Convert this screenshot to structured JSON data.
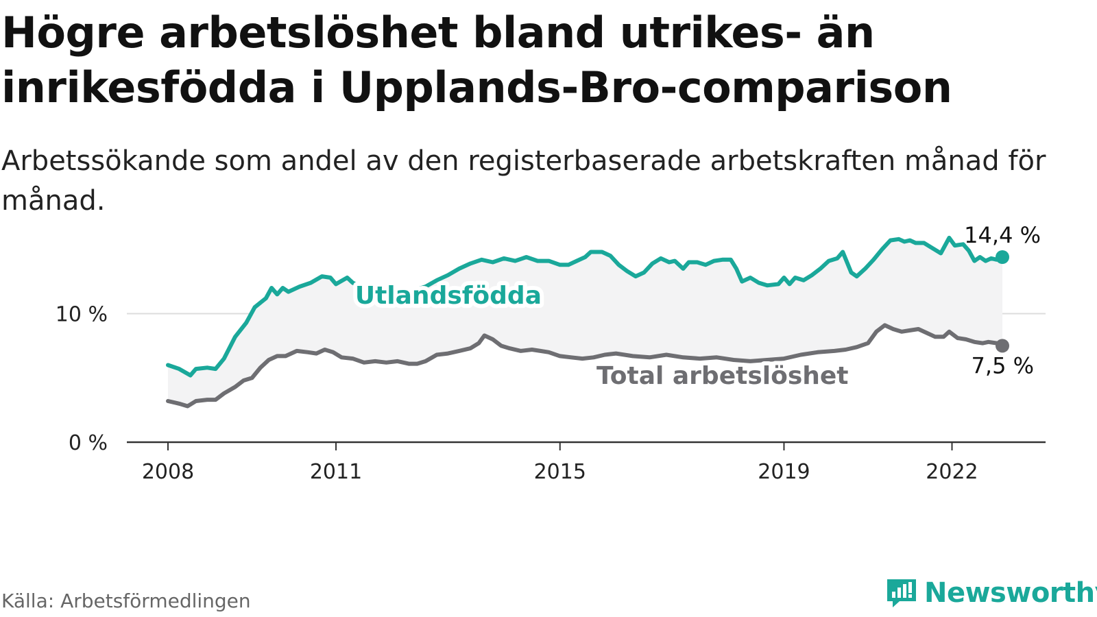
{
  "title": "Högre arbetslöshet bland utrikes- än inrikesfödda i Upplands-Bro-comparison",
  "subtitle": "Arbetssökande som andel av den registerbaserade arbetskraften månad för månad.",
  "source": "Källa: Arbetsförmedlingen",
  "brand": {
    "name": "Newsworthy",
    "icon": "newsworthy-logo-icon"
  },
  "colors": {
    "foreign": "#1aa89a",
    "total": "#6e6e72",
    "band": "#f3f3f4",
    "grid": "#dddddd",
    "axis": "#333333"
  },
  "chart_data": {
    "type": "line",
    "title": "Högre arbetslöshet bland utrikes- än inrikesfödda i Upplands-Bro-comparison",
    "xlabel": "",
    "ylabel": "",
    "xlim": [
      2008.0,
      2022.9
    ],
    "ylim": [
      0,
      16
    ],
    "y_ticks": [
      {
        "value": 0,
        "label": "0 %"
      },
      {
        "value": 10,
        "label": "10 %"
      }
    ],
    "x_ticks": [
      {
        "value": 2008,
        "label": "2008"
      },
      {
        "value": 2011,
        "label": "2011"
      },
      {
        "value": 2015,
        "label": "2015"
      },
      {
        "value": 2019,
        "label": "2019"
      },
      {
        "value": 2022,
        "label": "2022"
      }
    ],
    "series": [
      {
        "name": "Utlandsfödda",
        "label": "Utlandsfödda",
        "end_label": "14,4 %",
        "points": [
          [
            2008.0,
            6.0
          ],
          [
            2008.2,
            5.7
          ],
          [
            2008.4,
            5.2
          ],
          [
            2008.5,
            5.7
          ],
          [
            2008.7,
            5.8
          ],
          [
            2008.85,
            5.7
          ],
          [
            2009.0,
            6.5
          ],
          [
            2009.2,
            8.2
          ],
          [
            2009.4,
            9.3
          ],
          [
            2009.55,
            10.5
          ],
          [
            2009.75,
            11.2
          ],
          [
            2009.85,
            12.0
          ],
          [
            2009.95,
            11.5
          ],
          [
            2010.05,
            12.0
          ],
          [
            2010.15,
            11.7
          ],
          [
            2010.35,
            12.1
          ],
          [
            2010.55,
            12.4
          ],
          [
            2010.75,
            12.9
          ],
          [
            2010.9,
            12.8
          ],
          [
            2011.0,
            12.3
          ],
          [
            2011.2,
            12.8
          ],
          [
            2011.3,
            12.4
          ],
          [
            2011.45,
            12.1
          ],
          [
            2011.65,
            11.8
          ],
          [
            2011.8,
            12.2
          ],
          [
            2012.0,
            11.9
          ],
          [
            2012.15,
            11.6
          ],
          [
            2012.3,
            11.5
          ],
          [
            2012.45,
            11.9
          ],
          [
            2012.6,
            12.1
          ],
          [
            2012.8,
            12.6
          ],
          [
            2013.0,
            13.0
          ],
          [
            2013.2,
            13.5
          ],
          [
            2013.4,
            13.9
          ],
          [
            2013.6,
            14.2
          ],
          [
            2013.8,
            14.0
          ],
          [
            2014.0,
            14.3
          ],
          [
            2014.2,
            14.1
          ],
          [
            2014.4,
            14.4
          ],
          [
            2014.6,
            14.1
          ],
          [
            2014.8,
            14.1
          ],
          [
            2015.0,
            13.8
          ],
          [
            2015.15,
            13.8
          ],
          [
            2015.3,
            14.1
          ],
          [
            2015.45,
            14.4
          ],
          [
            2015.55,
            14.8
          ],
          [
            2015.75,
            14.8
          ],
          [
            2015.9,
            14.5
          ],
          [
            2016.05,
            13.8
          ],
          [
            2016.2,
            13.3
          ],
          [
            2016.35,
            12.9
          ],
          [
            2016.5,
            13.2
          ],
          [
            2016.65,
            13.9
          ],
          [
            2016.8,
            14.3
          ],
          [
            2016.95,
            14.0
          ],
          [
            2017.05,
            14.1
          ],
          [
            2017.2,
            13.5
          ],
          [
            2017.3,
            14.0
          ],
          [
            2017.45,
            14.0
          ],
          [
            2017.6,
            13.8
          ],
          [
            2017.75,
            14.1
          ],
          [
            2017.9,
            14.2
          ],
          [
            2018.05,
            14.2
          ],
          [
            2018.15,
            13.5
          ],
          [
            2018.25,
            12.5
          ],
          [
            2018.4,
            12.8
          ],
          [
            2018.55,
            12.4
          ],
          [
            2018.7,
            12.2
          ],
          [
            2018.9,
            12.3
          ],
          [
            2019.0,
            12.8
          ],
          [
            2019.1,
            12.3
          ],
          [
            2019.2,
            12.8
          ],
          [
            2019.35,
            12.6
          ],
          [
            2019.5,
            13.0
          ],
          [
            2019.65,
            13.5
          ],
          [
            2019.8,
            14.1
          ],
          [
            2019.95,
            14.3
          ],
          [
            2020.05,
            14.8
          ],
          [
            2020.2,
            13.2
          ],
          [
            2020.3,
            12.9
          ],
          [
            2020.45,
            13.5
          ],
          [
            2020.6,
            14.2
          ],
          [
            2020.75,
            15.0
          ],
          [
            2020.9,
            15.7
          ],
          [
            2021.05,
            15.8
          ],
          [
            2021.15,
            15.6
          ],
          [
            2021.25,
            15.7
          ],
          [
            2021.35,
            15.5
          ],
          [
            2021.5,
            15.5
          ],
          [
            2021.65,
            15.1
          ],
          [
            2021.8,
            14.7
          ],
          [
            2021.95,
            15.9
          ],
          [
            2022.05,
            15.3
          ],
          [
            2022.2,
            15.4
          ],
          [
            2022.3,
            14.9
          ],
          [
            2022.4,
            14.1
          ],
          [
            2022.5,
            14.4
          ],
          [
            2022.6,
            14.1
          ],
          [
            2022.7,
            14.3
          ],
          [
            2022.8,
            14.2
          ],
          [
            2022.9,
            14.4
          ]
        ]
      },
      {
        "name": "Total arbetslöshet",
        "label": "Total arbetslöshet",
        "end_label": "7,5 %",
        "points": [
          [
            2008.0,
            3.2
          ],
          [
            2008.2,
            3.0
          ],
          [
            2008.35,
            2.8
          ],
          [
            2008.5,
            3.2
          ],
          [
            2008.7,
            3.3
          ],
          [
            2008.85,
            3.3
          ],
          [
            2009.0,
            3.8
          ],
          [
            2009.2,
            4.3
          ],
          [
            2009.35,
            4.8
          ],
          [
            2009.5,
            5.0
          ],
          [
            2009.65,
            5.8
          ],
          [
            2009.8,
            6.4
          ],
          [
            2009.95,
            6.7
          ],
          [
            2010.1,
            6.7
          ],
          [
            2010.3,
            7.1
          ],
          [
            2010.5,
            7.0
          ],
          [
            2010.65,
            6.9
          ],
          [
            2010.8,
            7.2
          ],
          [
            2010.95,
            7.0
          ],
          [
            2011.1,
            6.6
          ],
          [
            2011.3,
            6.5
          ],
          [
            2011.5,
            6.2
          ],
          [
            2011.7,
            6.3
          ],
          [
            2011.9,
            6.2
          ],
          [
            2012.1,
            6.3
          ],
          [
            2012.3,
            6.1
          ],
          [
            2012.45,
            6.1
          ],
          [
            2012.6,
            6.3
          ],
          [
            2012.8,
            6.8
          ],
          [
            2013.0,
            6.9
          ],
          [
            2013.2,
            7.1
          ],
          [
            2013.4,
            7.3
          ],
          [
            2013.55,
            7.7
          ],
          [
            2013.65,
            8.3
          ],
          [
            2013.8,
            8.0
          ],
          [
            2013.95,
            7.5
          ],
          [
            2014.1,
            7.3
          ],
          [
            2014.3,
            7.1
          ],
          [
            2014.5,
            7.2
          ],
          [
            2014.65,
            7.1
          ],
          [
            2014.8,
            7.0
          ],
          [
            2015.0,
            6.7
          ],
          [
            2015.2,
            6.6
          ],
          [
            2015.4,
            6.5
          ],
          [
            2015.6,
            6.6
          ],
          [
            2015.8,
            6.8
          ],
          [
            2016.0,
            6.9
          ],
          [
            2016.3,
            6.7
          ],
          [
            2016.6,
            6.6
          ],
          [
            2016.9,
            6.8
          ],
          [
            2017.2,
            6.6
          ],
          [
            2017.5,
            6.5
          ],
          [
            2017.8,
            6.6
          ],
          [
            2018.1,
            6.4
          ],
          [
            2018.4,
            6.3
          ],
          [
            2018.7,
            6.4
          ],
          [
            2019.0,
            6.5
          ],
          [
            2019.3,
            6.8
          ],
          [
            2019.6,
            7.0
          ],
          [
            2019.9,
            7.1
          ],
          [
            2020.1,
            7.2
          ],
          [
            2020.3,
            7.4
          ],
          [
            2020.5,
            7.7
          ],
          [
            2020.65,
            8.6
          ],
          [
            2020.8,
            9.1
          ],
          [
            2020.95,
            8.8
          ],
          [
            2021.1,
            8.6
          ],
          [
            2021.25,
            8.7
          ],
          [
            2021.4,
            8.8
          ],
          [
            2021.55,
            8.5
          ],
          [
            2021.7,
            8.2
          ],
          [
            2021.85,
            8.2
          ],
          [
            2021.95,
            8.6
          ],
          [
            2022.1,
            8.1
          ],
          [
            2022.25,
            8.0
          ],
          [
            2022.4,
            7.8
          ],
          [
            2022.55,
            7.7
          ],
          [
            2022.65,
            7.8
          ],
          [
            2022.8,
            7.7
          ],
          [
            2022.9,
            7.5
          ]
        ]
      }
    ]
  }
}
